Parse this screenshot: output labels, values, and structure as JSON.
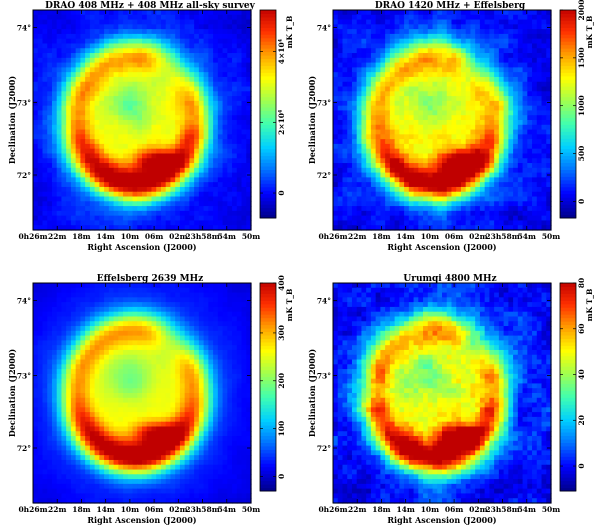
{
  "figure": {
    "panels": [
      {
        "title": "DRAO 408 MHz + 408 MHz all-sky survey",
        "colorbar_label": "mK T_B",
        "colorbar_ticks": [
          {
            "label": "0",
            "frac": 0.12
          },
          {
            "label": "2×10⁴",
            "frac": 0.46
          },
          {
            "label": "4×10⁴",
            "frac": 0.8
          }
        ],
        "noise": 0.15,
        "shell": 1.0
      },
      {
        "title": "DRAO 1420 MHz + Effelsberg",
        "colorbar_label": "mK T_B",
        "colorbar_ticks": [
          {
            "label": "0",
            "frac": 0.08
          },
          {
            "label": "500",
            "frac": 0.31
          },
          {
            "label": "1000",
            "frac": 0.54
          },
          {
            "label": "1500",
            "frac": 0.77
          },
          {
            "label": "2000",
            "frac": 1.0
          }
        ],
        "noise": 0.25,
        "shell": 1.0
      },
      {
        "title": "Effelsberg 2639 MHz",
        "colorbar_label": "mK T_B",
        "colorbar_ticks": [
          {
            "label": "0",
            "frac": 0.07
          },
          {
            "label": "100",
            "frac": 0.3
          },
          {
            "label": "200",
            "frac": 0.53
          },
          {
            "label": "300",
            "frac": 0.76
          },
          {
            "label": "400",
            "frac": 1.0
          }
        ],
        "noise": 0.05,
        "shell": 1.0
      },
      {
        "title": "Urumqi 4800 MHz",
        "colorbar_label": "mK T_B",
        "colorbar_ticks": [
          {
            "label": "0",
            "frac": 0.12
          },
          {
            "label": "20",
            "frac": 0.34
          },
          {
            "label": "40",
            "frac": 0.56
          },
          {
            "label": "60",
            "frac": 0.78
          },
          {
            "label": "80",
            "frac": 1.0
          }
        ],
        "noise": 0.35,
        "shell": 1.0
      }
    ],
    "axes": {
      "xlabel": "Right Ascension (J2000)",
      "ylabel": "Declination (J2000)",
      "x_ticks": [
        "0h26m",
        "22m",
        "18m",
        "14m",
        "10m",
        "06m",
        "02m",
        "23h58m",
        "54m",
        "50m"
      ],
      "y_ticks": [
        "74°",
        "73°",
        "72°"
      ]
    },
    "colormap": [
      "#00008f",
      "#0000ff",
      "#0070ff",
      "#00d0ff",
      "#40ffb0",
      "#a0ff50",
      "#ffff00",
      "#ffa000",
      "#ff3000",
      "#c00000"
    ]
  }
}
